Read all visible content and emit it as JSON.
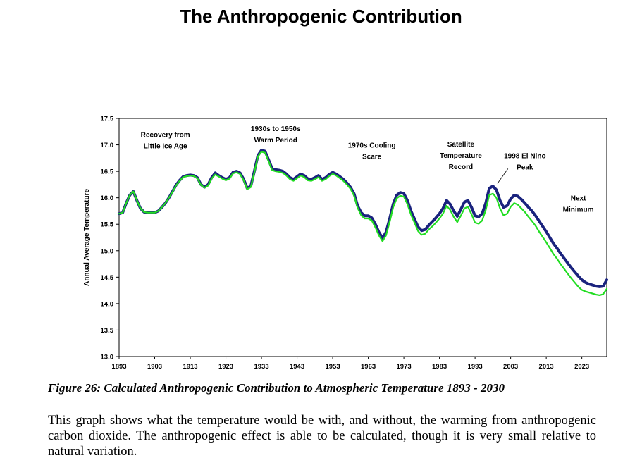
{
  "page": {
    "title": "The Anthropogenic Contribution",
    "caption": "Figure 26: Calculated Anthropogenic Contribution to Atmospheric Temperature 1893 - 2030",
    "body": "This graph shows what the temperature would be with, and without, the warming from anthropogenic carbon dioxide. The anthropogenic effect is able to be calculated, though it is very small relative to natural variation."
  },
  "colors": {
    "with_anthropogenic": "#1a237e",
    "without_anthropogenic": "#22dd22",
    "axis": "#000000"
  },
  "chart_data": {
    "type": "line",
    "title": "",
    "xlabel": "",
    "ylabel": "Annual Average Temperature",
    "xlim": [
      1893,
      2030
    ],
    "ylim": [
      13.0,
      17.5
    ],
    "x_ticks": [
      "1893",
      "1903",
      "1913",
      "1923",
      "1933",
      "1943",
      "1953",
      "1963",
      "1973",
      "1983",
      "1993",
      "2003",
      "2013",
      "2023"
    ],
    "y_ticks": [
      "13.0",
      "13.5",
      "14.0",
      "14.5",
      "15.0",
      "15.5",
      "16.0",
      "16.5",
      "17.0",
      "17.5"
    ],
    "grid": false,
    "legend": "none",
    "series": [
      {
        "color": "#1a237e",
        "x": [
          1893,
          1894,
          1895,
          1896,
          1897,
          1898,
          1899,
          1900,
          1901,
          1902,
          1903,
          1904,
          1905,
          1906,
          1907,
          1908,
          1909,
          1910,
          1911,
          1912,
          1913,
          1914,
          1915,
          1916,
          1917,
          1918,
          1919,
          1920,
          1921,
          1922,
          1923,
          1924,
          1925,
          1926,
          1927,
          1928,
          1929,
          1930,
          1931,
          1932,
          1933,
          1934,
          1935,
          1936,
          1937,
          1938,
          1939,
          1940,
          1941,
          1942,
          1943,
          1944,
          1945,
          1946,
          1947,
          1948,
          1949,
          1950,
          1951,
          1952,
          1953,
          1954,
          1955,
          1956,
          1957,
          1958,
          1959,
          1960,
          1961,
          1962,
          1963,
          1964,
          1965,
          1966,
          1967,
          1968,
          1969,
          1970,
          1971,
          1972,
          1973,
          1974,
          1975,
          1976,
          1977,
          1978,
          1979,
          1980,
          1981,
          1982,
          1983,
          1984,
          1985,
          1986,
          1987,
          1988,
          1989,
          1990,
          1991,
          1992,
          1993,
          1994,
          1995,
          1996,
          1997,
          1998,
          1999,
          2000,
          2001,
          2002,
          2003,
          2004,
          2005,
          2006,
          2007,
          2008,
          2009,
          2010,
          2011,
          2012,
          2013,
          2014,
          2015,
          2016,
          2017,
          2018,
          2019,
          2020,
          2021,
          2022,
          2023,
          2024,
          2025,
          2026,
          2027,
          2028,
          2029,
          2030
        ],
        "y": [
          15.7,
          15.72,
          15.9,
          16.05,
          16.12,
          15.95,
          15.8,
          15.73,
          15.72,
          15.72,
          15.72,
          15.75,
          15.82,
          15.9,
          16.0,
          16.12,
          16.24,
          16.33,
          16.4,
          16.42,
          16.43,
          16.42,
          16.38,
          16.25,
          16.2,
          16.25,
          16.38,
          16.47,
          16.42,
          16.38,
          16.35,
          16.38,
          16.48,
          16.5,
          16.47,
          16.35,
          16.18,
          16.22,
          16.5,
          16.8,
          16.9,
          16.88,
          16.72,
          16.55,
          16.53,
          16.52,
          16.5,
          16.45,
          16.38,
          16.35,
          16.4,
          16.45,
          16.42,
          16.36,
          16.35,
          16.38,
          16.42,
          16.35,
          16.38,
          16.44,
          16.48,
          16.45,
          16.4,
          16.35,
          16.28,
          16.2,
          16.08,
          15.85,
          15.72,
          15.66,
          15.66,
          15.62,
          15.5,
          15.35,
          15.24,
          15.35,
          15.6,
          15.88,
          16.05,
          16.1,
          16.08,
          15.95,
          15.75,
          15.6,
          15.45,
          15.38,
          15.4,
          15.48,
          15.55,
          15.62,
          15.7,
          15.8,
          15.95,
          15.88,
          15.75,
          15.65,
          15.78,
          15.92,
          15.95,
          15.82,
          15.66,
          15.64,
          15.7,
          15.9,
          16.18,
          16.22,
          16.15,
          15.95,
          15.82,
          15.85,
          15.98,
          16.05,
          16.03,
          15.97,
          15.9,
          15.82,
          15.75,
          15.66,
          15.56,
          15.46,
          15.36,
          15.25,
          15.14,
          15.05,
          14.95,
          14.86,
          14.77,
          14.68,
          14.6,
          14.52,
          14.45,
          14.4,
          14.37,
          14.35,
          14.33,
          14.32,
          14.33,
          14.45
        ]
      },
      {
        "color": "#22dd22",
        "x": [
          1893,
          1894,
          1895,
          1896,
          1897,
          1898,
          1899,
          1900,
          1901,
          1902,
          1903,
          1904,
          1905,
          1906,
          1907,
          1908,
          1909,
          1910,
          1911,
          1912,
          1913,
          1914,
          1915,
          1916,
          1917,
          1918,
          1919,
          1920,
          1921,
          1922,
          1923,
          1924,
          1925,
          1926,
          1927,
          1928,
          1929,
          1930,
          1931,
          1932,
          1933,
          1934,
          1935,
          1936,
          1937,
          1938,
          1939,
          1940,
          1941,
          1942,
          1943,
          1944,
          1945,
          1946,
          1947,
          1948,
          1949,
          1950,
          1951,
          1952,
          1953,
          1954,
          1955,
          1956,
          1957,
          1958,
          1959,
          1960,
          1961,
          1962,
          1963,
          1964,
          1965,
          1966,
          1967,
          1968,
          1969,
          1970,
          1971,
          1972,
          1973,
          1974,
          1975,
          1976,
          1977,
          1978,
          1979,
          1980,
          1981,
          1982,
          1983,
          1984,
          1985,
          1986,
          1987,
          1988,
          1989,
          1990,
          1991,
          1992,
          1993,
          1994,
          1995,
          1996,
          1997,
          1998,
          1999,
          2000,
          2001,
          2002,
          2003,
          2004,
          2005,
          2006,
          2007,
          2008,
          2009,
          2010,
          2011,
          2012,
          2013,
          2014,
          2015,
          2016,
          2017,
          2018,
          2019,
          2020,
          2021,
          2022,
          2023,
          2024,
          2025,
          2026,
          2027,
          2028,
          2029,
          2030
        ],
        "y": [
          15.7,
          15.72,
          15.9,
          16.05,
          16.12,
          15.95,
          15.8,
          15.73,
          15.72,
          15.72,
          15.72,
          15.75,
          15.82,
          15.9,
          16.0,
          16.11,
          16.23,
          16.32,
          16.39,
          16.41,
          16.42,
          16.41,
          16.37,
          16.24,
          16.19,
          16.23,
          16.36,
          16.44,
          16.4,
          16.36,
          16.33,
          16.36,
          16.46,
          16.48,
          16.45,
          16.33,
          16.16,
          16.2,
          16.48,
          16.78,
          16.87,
          16.85,
          16.69,
          16.52,
          16.5,
          16.49,
          16.47,
          16.42,
          16.35,
          16.32,
          16.37,
          16.42,
          16.39,
          16.33,
          16.32,
          16.35,
          16.39,
          16.32,
          16.35,
          16.41,
          16.45,
          16.42,
          16.37,
          16.32,
          16.25,
          16.17,
          16.04,
          15.81,
          15.67,
          15.61,
          15.61,
          15.57,
          15.44,
          15.29,
          15.18,
          15.29,
          15.54,
          15.82,
          15.99,
          16.04,
          16.02,
          15.88,
          15.68,
          15.53,
          15.37,
          15.3,
          15.32,
          15.4,
          15.46,
          15.53,
          15.61,
          15.7,
          15.85,
          15.77,
          15.64,
          15.54,
          15.66,
          15.8,
          15.83,
          15.69,
          15.53,
          15.51,
          15.57,
          15.77,
          16.05,
          16.08,
          16.0,
          15.8,
          15.67,
          15.7,
          15.83,
          15.9,
          15.87,
          15.8,
          15.73,
          15.64,
          15.56,
          15.47,
          15.36,
          15.26,
          15.16,
          15.05,
          14.94,
          14.85,
          14.75,
          14.66,
          14.57,
          14.48,
          14.4,
          14.32,
          14.26,
          14.23,
          14.21,
          14.19,
          14.17,
          14.16,
          14.18,
          14.28
        ]
      }
    ],
    "annotations": [
      {
        "lines": [
          "Recovery from",
          "Little Ice Age"
        ],
        "x": 1906,
        "y": 17.15
      },
      {
        "lines": [
          "1930s to 1950s",
          "Warm Period"
        ],
        "x": 1937,
        "y": 17.26
      },
      {
        "lines": [
          "1970s Cooling",
          "Scare"
        ],
        "x": 1964,
        "y": 16.95
      },
      {
        "lines": [
          "Satellite",
          "Temperature",
          "Record"
        ],
        "x": 1989,
        "y": 16.97
      },
      {
        "lines": [
          "1998 El Nino",
          "Peak"
        ],
        "x": 2007,
        "y": 16.75
      },
      {
        "lines": [
          "Next",
          "Minimum"
        ],
        "x": 2022,
        "y": 15.95
      }
    ]
  }
}
